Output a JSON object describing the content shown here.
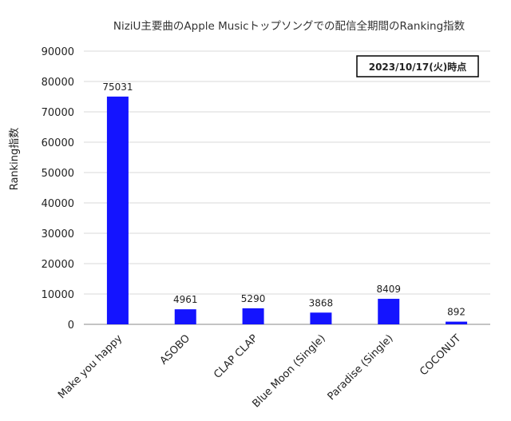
{
  "chart_data": {
    "type": "bar",
    "title": "NiziU主要曲のApple Musicトップソングでの配信全期間のRanking指数",
    "ylabel": "Ranking指数",
    "xlabel": "",
    "annotation": "2023/10/17(火)時点",
    "categories": [
      "Make you happy",
      "ASOBO",
      "CLAP CLAP",
      "Blue Moon (Single)",
      "Paradise (Single)",
      "COCONUT"
    ],
    "values": [
      75031,
      4961,
      5290,
      3868,
      8409,
      892
    ],
    "data_labels": [
      "75031",
      "4961",
      "5290",
      "3868",
      "8409",
      "892"
    ],
    "ylim": [
      0,
      90000
    ],
    "yticks": [
      "0",
      "10000",
      "20000",
      "30000",
      "40000",
      "50000",
      "60000",
      "70000",
      "80000",
      "90000"
    ],
    "grid": true,
    "legend": "none",
    "bar_color": "#1414ff"
  }
}
